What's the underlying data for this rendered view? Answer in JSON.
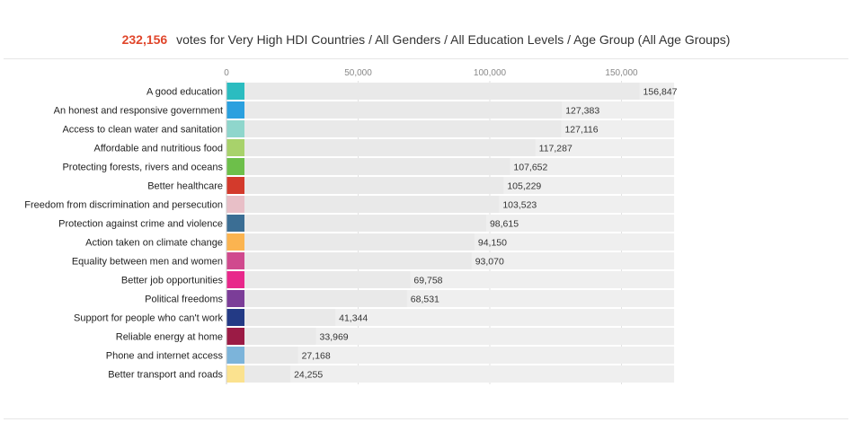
{
  "header": {
    "count": "232,156",
    "text": "votes for Very High HDI Countries / All Genders / All Education Levels / Age Group (All Age Groups)"
  },
  "chart_data": {
    "type": "bar",
    "orientation": "horizontal",
    "xlim": [
      0,
      170000
    ],
    "ticks": [
      0,
      50000,
      100000,
      150000
    ],
    "tick_labels": [
      "0",
      "50,000",
      "100,000",
      "150,000"
    ],
    "bar_background": "#efefef",
    "categories": [
      "A good education",
      "An honest and responsive government",
      "Access to clean water and sanitation",
      "Affordable and nutritious food",
      "Protecting forests, rivers and oceans",
      "Better healthcare",
      "Freedom from discrimination and persecution",
      "Protection against crime and violence",
      "Action taken on climate change",
      "Equality between men and women",
      "Better job opportunities",
      "Political freedoms",
      "Support for people who can't work",
      "Reliable energy at home",
      "Phone and internet access",
      "Better transport and roads"
    ],
    "values": [
      156847,
      127383,
      127116,
      117287,
      107652,
      105229,
      103523,
      98615,
      94150,
      93070,
      69758,
      68531,
      41344,
      33969,
      27168,
      24255
    ],
    "value_labels": [
      "156,847",
      "127,383",
      "127,116",
      "117,287",
      "107,652",
      "105,229",
      "103,523",
      "98,615",
      "94,150",
      "93,070",
      "69,758",
      "68,531",
      "41,344",
      "33,969",
      "27,168",
      "24,255"
    ],
    "colors": [
      "#2bbcc0",
      "#2aa0df",
      "#8fd6cc",
      "#a8d26b",
      "#6dbf4a",
      "#d33a2c",
      "#e8bfc7",
      "#3b6e94",
      "#fbb450",
      "#d04a8e",
      "#e8288b",
      "#7b3d98",
      "#233a85",
      "#9b1b45",
      "#7cb4da",
      "#fbe28f"
    ]
  }
}
